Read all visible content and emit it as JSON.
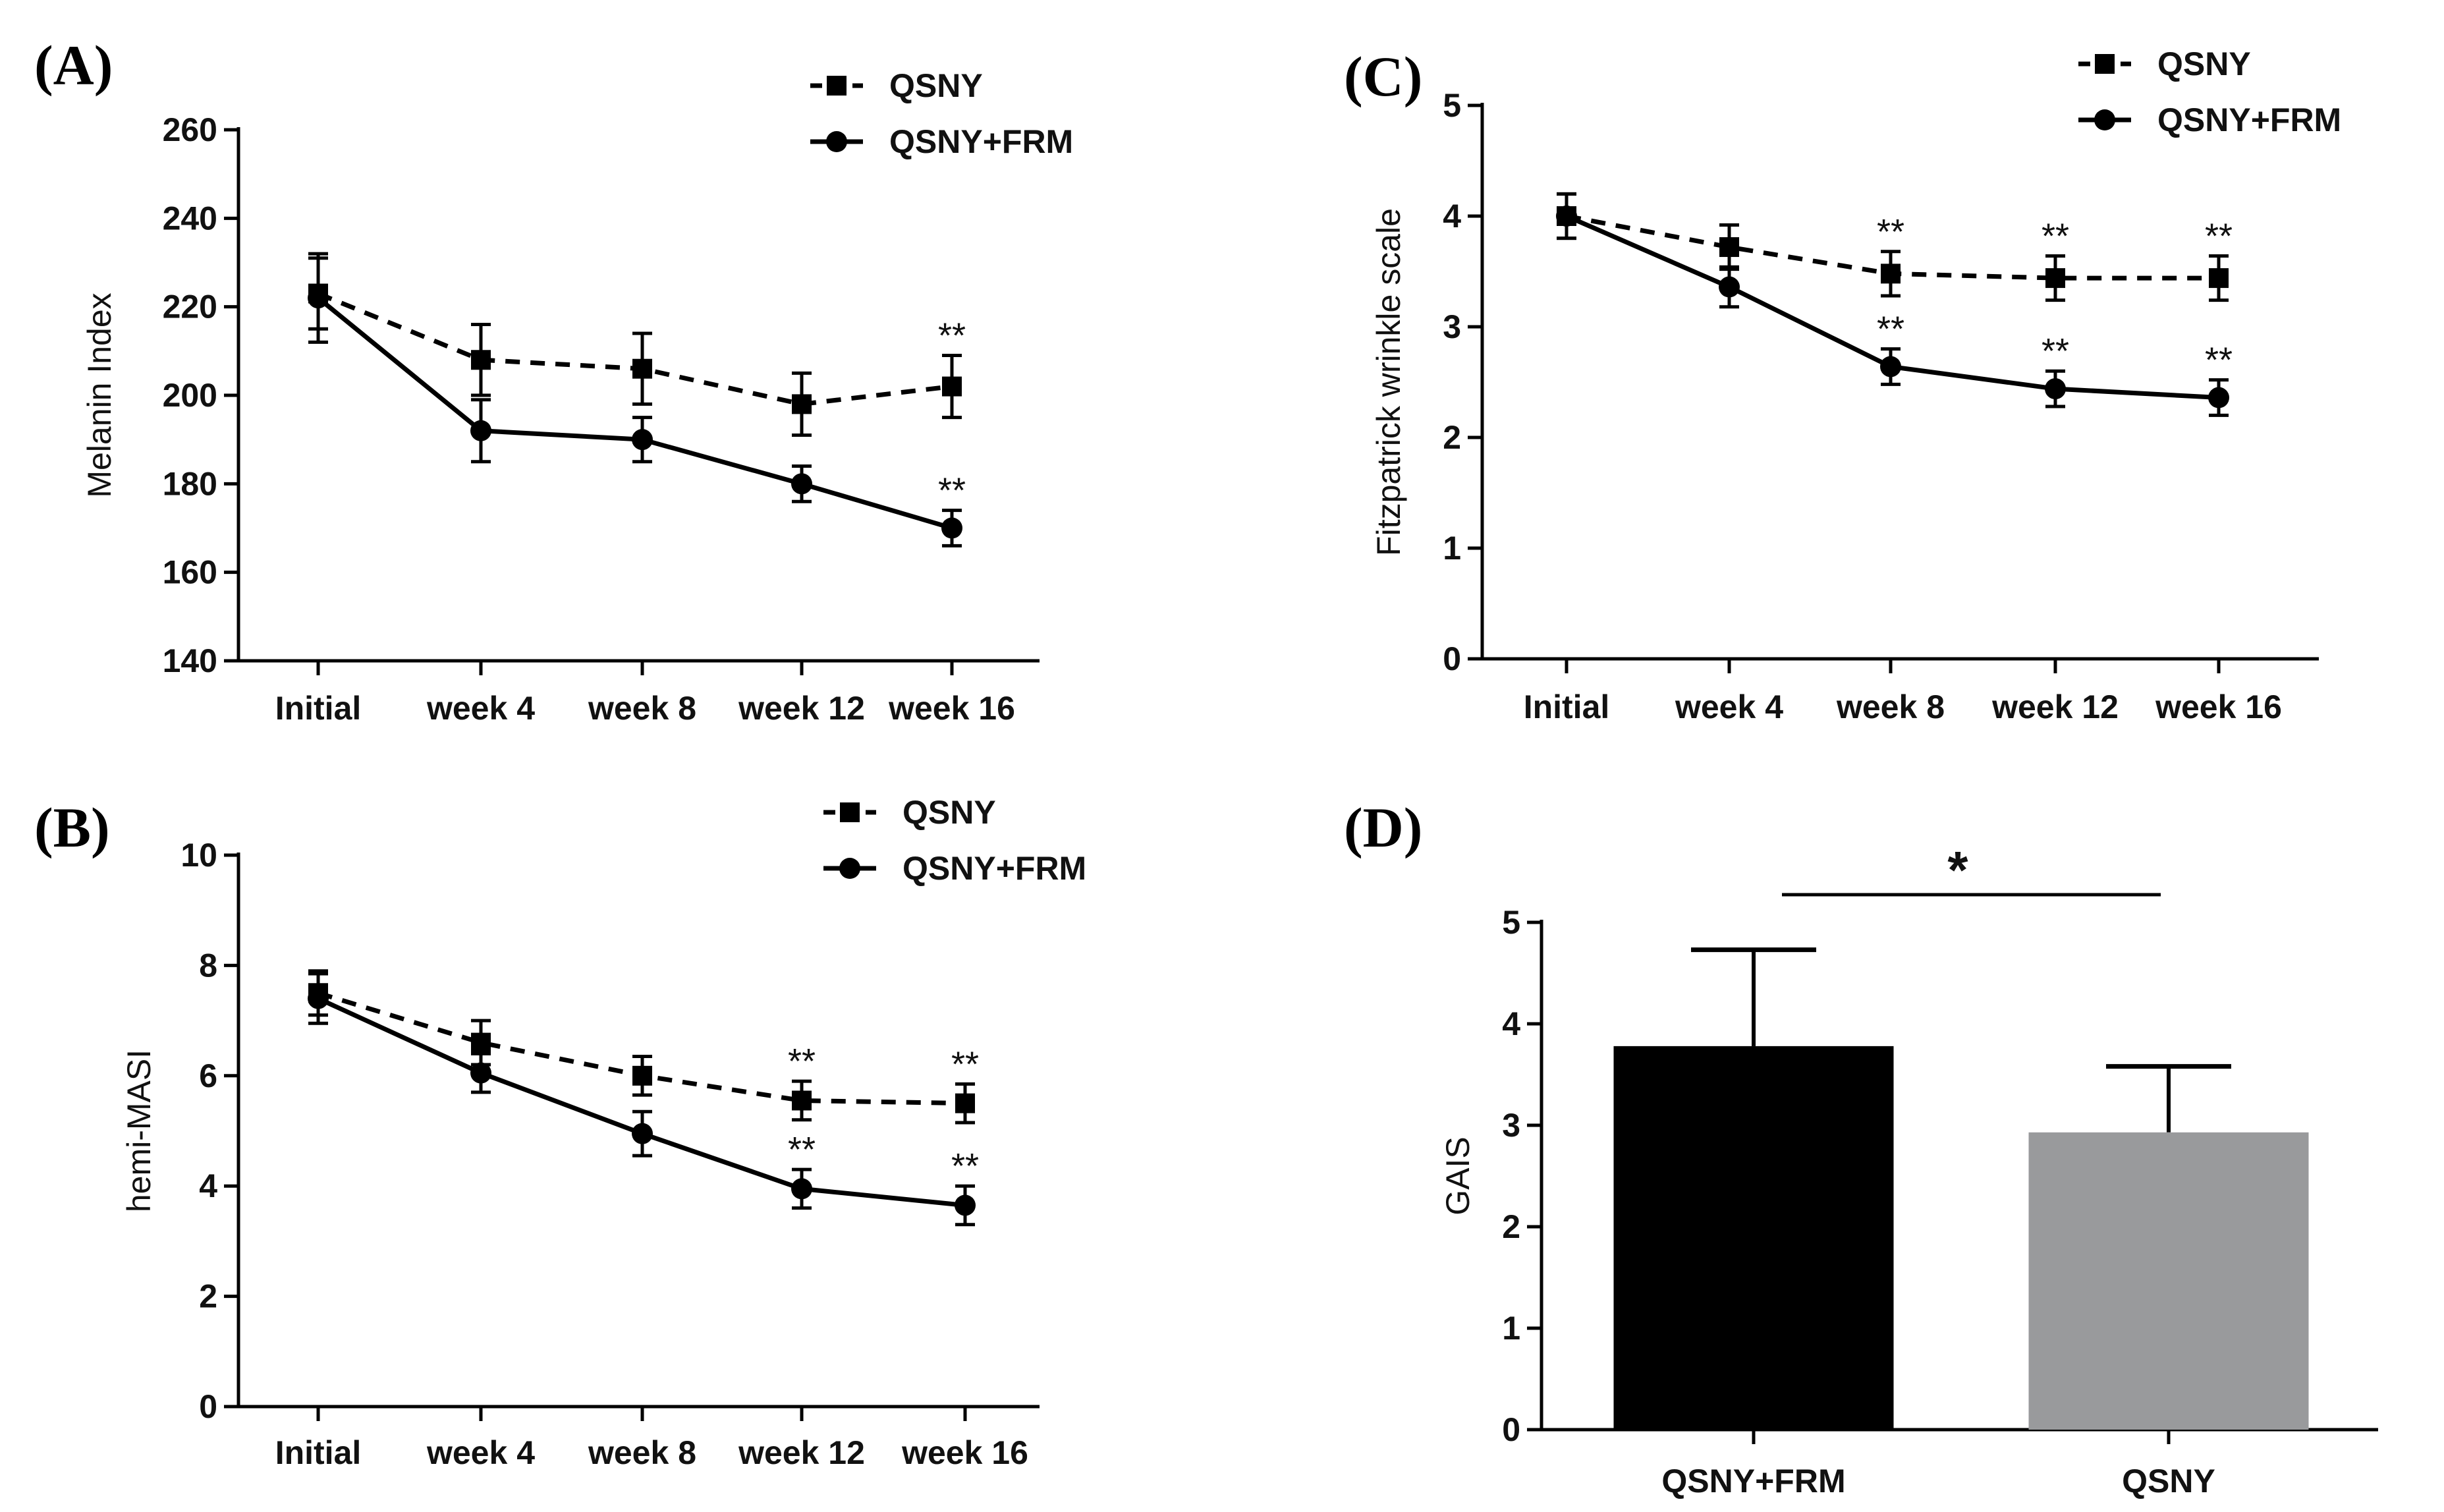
{
  "chart_data": [
    {
      "panel": "(A)",
      "type": "line",
      "categories": [
        "Initial",
        "week 4",
        "week 8",
        "week 12",
        "week 16"
      ],
      "ylabel": "Melanin Index",
      "xlabel": "",
      "ylim": [
        140,
        260
      ],
      "yticks": [
        140,
        160,
        180,
        200,
        220,
        240,
        260
      ],
      "legend_position": "top-right",
      "series": [
        {
          "name": "QSNY",
          "style": "dashed",
          "marker": "square",
          "values": [
            223,
            208,
            206,
            198,
            202
          ],
          "errors": [
            8,
            8,
            8,
            7,
            7
          ],
          "significance": [
            "",
            "",
            "",
            "",
            "**"
          ]
        },
        {
          "name": "QSNY+FRM",
          "style": "solid",
          "marker": "circle",
          "values": [
            222,
            192,
            190,
            180,
            170
          ],
          "errors": [
            10,
            7,
            5,
            4,
            4
          ],
          "significance": [
            "",
            "",
            "",
            "",
            "**"
          ]
        }
      ]
    },
    {
      "panel": "(B)",
      "type": "line",
      "categories": [
        "Initial",
        "week 4",
        "week 8",
        "week 12",
        "week 16"
      ],
      "ylabel": "hemi-MASI",
      "xlabel": "",
      "ylim": [
        0,
        10
      ],
      "yticks": [
        0,
        2,
        4,
        6,
        8,
        10
      ],
      "legend_position": "top-right",
      "series": [
        {
          "name": "QSNY",
          "style": "dashed",
          "marker": "square",
          "values": [
            7.5,
            6.6,
            6.0,
            5.55,
            5.5
          ],
          "errors": [
            0.4,
            0.4,
            0.35,
            0.35,
            0.35
          ],
          "significance": [
            "",
            "",
            "",
            "**",
            "**"
          ]
        },
        {
          "name": "QSNY+FRM",
          "style": "solid",
          "marker": "circle",
          "values": [
            7.4,
            6.05,
            4.95,
            3.95,
            3.65
          ],
          "errors": [
            0.45,
            0.35,
            0.4,
            0.35,
            0.35
          ],
          "significance": [
            "",
            "",
            "",
            "**",
            "**"
          ]
        }
      ]
    },
    {
      "panel": "(C)",
      "type": "line",
      "categories": [
        "Initial",
        "week 4",
        "week 8",
        "week 12",
        "week 16"
      ],
      "ylabel": "Fitzpatrick wrinkle  scale",
      "xlabel": "",
      "ylim": [
        0,
        5
      ],
      "yticks": [
        0,
        1,
        2,
        3,
        4,
        5
      ],
      "legend_position": "top-right",
      "series": [
        {
          "name": "QSNY",
          "style": "dashed",
          "marker": "square",
          "values": [
            4.0,
            3.72,
            3.48,
            3.44,
            3.44
          ],
          "errors": [
            0.2,
            0.2,
            0.2,
            0.2,
            0.2
          ],
          "significance": [
            "",
            "",
            "**",
            "**",
            "**"
          ]
        },
        {
          "name": "QSNY+FRM",
          "style": "solid",
          "marker": "circle",
          "values": [
            4.0,
            3.36,
            2.64,
            2.44,
            2.36
          ],
          "errors": [
            0.2,
            0.18,
            0.16,
            0.16,
            0.16
          ],
          "significance": [
            "",
            "",
            "**",
            "**",
            "**"
          ]
        }
      ]
    },
    {
      "panel": "(D)",
      "type": "bar",
      "categories": [
        "QSNY+FRM",
        "QSNY"
      ],
      "values": [
        3.78,
        2.93
      ],
      "errors": [
        0.95,
        0.65
      ],
      "colors": [
        "#000000",
        "#999a9c"
      ],
      "ylabel": "GAIS",
      "xlabel": "",
      "ylim": [
        0,
        5
      ],
      "yticks": [
        0,
        1,
        2,
        3,
        4,
        5
      ],
      "significance": "*"
    }
  ]
}
